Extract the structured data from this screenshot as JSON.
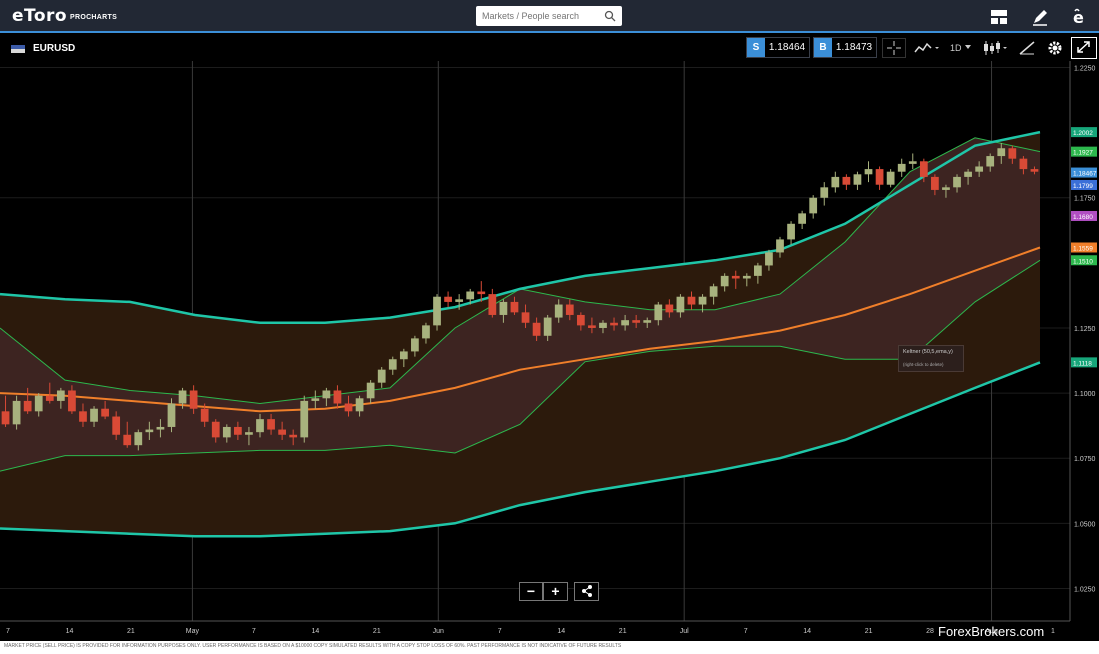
{
  "header": {
    "logo_text": "eToro",
    "logo_sub": "PROCHARTS",
    "search": {
      "placeholder": "Markets / People search"
    }
  },
  "toolbar": {
    "symbol": "EURUSD",
    "sell": {
      "label": "S",
      "price": "1.18464"
    },
    "buy": {
      "label": "B",
      "price": "1.18473"
    },
    "timeframe": "1D"
  },
  "tooltip": {
    "title": "Keltner (50,5,ema,y)",
    "hint": "(right-click to delete)"
  },
  "footer_text": "MARKET PRICE (SELL PRICE) IS PROVIDED FOR INFORMATION PURPOSES ONLY. USER PERFORMANCE IS BASED ON A $10000 COPY SIMULATED RESULTS WITH A COPY STOP LOSS OF 60%. PAST PERFORMANCE IS NOT INDICATIVE OF FUTURE RESULTS",
  "watermark": "ForexBrokers.com",
  "colors": {
    "accent": "#3b8fd8",
    "up": "#a8b27e",
    "down": "#d94a36",
    "keltner": "#1fc6a8",
    "ema": "#f07f2a"
  },
  "chart_data": {
    "type": "candlestick",
    "x_tick_labels": [
      "7",
      "14",
      "21",
      "May",
      "7",
      "14",
      "21",
      "Jun",
      "7",
      "14",
      "21",
      "Jul",
      "7",
      "14",
      "21",
      "28",
      "Aug",
      "1"
    ],
    "y_tick_labels": [
      "1.2250",
      "1.1750",
      "1.1250",
      "1.1000",
      "1.0750",
      "1.0500",
      "1.0250"
    ],
    "ylim": [
      1.0125,
      1.2275
    ],
    "price_labels": [
      {
        "value": "1.2002",
        "color": "#17a67a"
      },
      {
        "value": "1.1927",
        "color": "#2db84d"
      },
      {
        "value": "1.18467",
        "color": "#3b8fd8"
      },
      {
        "value": "1.1799",
        "color": "#3b6fd8"
      },
      {
        "value": "1.1680",
        "color": "#b14fc2"
      },
      {
        "value": "1.1559",
        "color": "#f07f2a"
      },
      {
        "value": "1.1510",
        "color": "#2db84d"
      },
      {
        "value": "1.1118",
        "color": "#17a67a"
      }
    ],
    "candles": [
      [
        1.093,
        1.099,
        1.087,
        1.088
      ],
      [
        1.088,
        1.099,
        1.086,
        1.097
      ],
      [
        1.097,
        1.102,
        1.092,
        1.093
      ],
      [
        1.093,
        1.1,
        1.091,
        1.099
      ],
      [
        1.099,
        1.104,
        1.096,
        1.097
      ],
      [
        1.097,
        1.102,
        1.094,
        1.101
      ],
      [
        1.101,
        1.103,
        1.092,
        1.093
      ],
      [
        1.093,
        1.096,
        1.087,
        1.089
      ],
      [
        1.089,
        1.095,
        1.087,
        1.094
      ],
      [
        1.094,
        1.097,
        1.09,
        1.091
      ],
      [
        1.091,
        1.093,
        1.082,
        1.084
      ],
      [
        1.084,
        1.089,
        1.079,
        1.08
      ],
      [
        1.08,
        1.086,
        1.078,
        1.085
      ],
      [
        1.085,
        1.089,
        1.082,
        1.086
      ],
      [
        1.086,
        1.09,
        1.083,
        1.087
      ],
      [
        1.087,
        1.098,
        1.085,
        1.096
      ],
      [
        1.096,
        1.102,
        1.094,
        1.101
      ],
      [
        1.101,
        1.103,
        1.092,
        1.094
      ],
      [
        1.094,
        1.096,
        1.087,
        1.089
      ],
      [
        1.089,
        1.09,
        1.081,
        1.083
      ],
      [
        1.083,
        1.088,
        1.081,
        1.087
      ],
      [
        1.087,
        1.089,
        1.082,
        1.084
      ],
      [
        1.084,
        1.087,
        1.08,
        1.085
      ],
      [
        1.085,
        1.092,
        1.083,
        1.09
      ],
      [
        1.09,
        1.092,
        1.084,
        1.086
      ],
      [
        1.086,
        1.089,
        1.082,
        1.084
      ],
      [
        1.084,
        1.086,
        1.08,
        1.083
      ],
      [
        1.083,
        1.099,
        1.081,
        1.097
      ],
      [
        1.097,
        1.101,
        1.094,
        1.098
      ],
      [
        1.098,
        1.102,
        1.095,
        1.101
      ],
      [
        1.101,
        1.103,
        1.094,
        1.096
      ],
      [
        1.096,
        1.099,
        1.091,
        1.093
      ],
      [
        1.093,
        1.099,
        1.091,
        1.098
      ],
      [
        1.098,
        1.105,
        1.096,
        1.104
      ],
      [
        1.104,
        1.11,
        1.102,
        1.109
      ],
      [
        1.109,
        1.114,
        1.107,
        1.113
      ],
      [
        1.113,
        1.117,
        1.11,
        1.116
      ],
      [
        1.116,
        1.122,
        1.114,
        1.121
      ],
      [
        1.121,
        1.127,
        1.119,
        1.126
      ],
      [
        1.126,
        1.138,
        1.124,
        1.137
      ],
      [
        1.137,
        1.139,
        1.133,
        1.135
      ],
      [
        1.135,
        1.138,
        1.132,
        1.136
      ],
      [
        1.136,
        1.14,
        1.134,
        1.139
      ],
      [
        1.139,
        1.143,
        1.135,
        1.138
      ],
      [
        1.138,
        1.14,
        1.129,
        1.13
      ],
      [
        1.13,
        1.136,
        1.127,
        1.135
      ],
      [
        1.135,
        1.137,
        1.13,
        1.131
      ],
      [
        1.131,
        1.134,
        1.125,
        1.127
      ],
      [
        1.127,
        1.129,
        1.12,
        1.122
      ],
      [
        1.122,
        1.13,
        1.12,
        1.129
      ],
      [
        1.129,
        1.136,
        1.127,
        1.134
      ],
      [
        1.134,
        1.136,
        1.128,
        1.13
      ],
      [
        1.13,
        1.131,
        1.124,
        1.126
      ],
      [
        1.126,
        1.129,
        1.123,
        1.125
      ],
      [
        1.125,
        1.128,
        1.123,
        1.127
      ],
      [
        1.127,
        1.129,
        1.124,
        1.126
      ],
      [
        1.126,
        1.13,
        1.124,
        1.128
      ],
      [
        1.128,
        1.13,
        1.125,
        1.127
      ],
      [
        1.127,
        1.129,
        1.125,
        1.128
      ],
      [
        1.128,
        1.135,
        1.126,
        1.134
      ],
      [
        1.134,
        1.136,
        1.129,
        1.131
      ],
      [
        1.131,
        1.138,
        1.129,
        1.137
      ],
      [
        1.137,
        1.139,
        1.132,
        1.134
      ],
      [
        1.134,
        1.138,
        1.131,
        1.137
      ],
      [
        1.137,
        1.142,
        1.134,
        1.141
      ],
      [
        1.141,
        1.146,
        1.139,
        1.145
      ],
      [
        1.145,
        1.147,
        1.14,
        1.144
      ],
      [
        1.144,
        1.146,
        1.141,
        1.145
      ],
      [
        1.145,
        1.15,
        1.142,
        1.149
      ],
      [
        1.149,
        1.155,
        1.147,
        1.154
      ],
      [
        1.154,
        1.16,
        1.152,
        1.159
      ],
      [
        1.159,
        1.166,
        1.157,
        1.165
      ],
      [
        1.165,
        1.17,
        1.163,
        1.169
      ],
      [
        1.169,
        1.176,
        1.167,
        1.175
      ],
      [
        1.175,
        1.181,
        1.172,
        1.179
      ],
      [
        1.179,
        1.185,
        1.177,
        1.183
      ],
      [
        1.183,
        1.184,
        1.178,
        1.18
      ],
      [
        1.18,
        1.185,
        1.178,
        1.184
      ],
      [
        1.184,
        1.189,
        1.181,
        1.186
      ],
      [
        1.186,
        1.187,
        1.178,
        1.18
      ],
      [
        1.18,
        1.186,
        1.179,
        1.185
      ],
      [
        1.185,
        1.19,
        1.183,
        1.188
      ],
      [
        1.188,
        1.192,
        1.186,
        1.189
      ],
      [
        1.189,
        1.19,
        1.181,
        1.183
      ],
      [
        1.183,
        1.184,
        1.176,
        1.178
      ],
      [
        1.178,
        1.18,
        1.175,
        1.179
      ],
      [
        1.179,
        1.184,
        1.177,
        1.183
      ],
      [
        1.183,
        1.186,
        1.18,
        1.185
      ],
      [
        1.185,
        1.189,
        1.183,
        1.187
      ],
      [
        1.187,
        1.192,
        1.185,
        1.191
      ],
      [
        1.191,
        1.196,
        1.188,
        1.194
      ],
      [
        1.194,
        1.195,
        1.188,
        1.19
      ],
      [
        1.19,
        1.191,
        1.184,
        1.186
      ],
      [
        1.186,
        1.187,
        1.184,
        1.185
      ]
    ],
    "series": [
      {
        "kind": "keltner-upper",
        "values": [
          1.138,
          1.136,
          1.135,
          1.13,
          1.127,
          1.127,
          1.129,
          1.133,
          1.14,
          1.145,
          1.148,
          1.151,
          1.155,
          1.165,
          1.18,
          1.195,
          1.2002
        ]
      },
      {
        "kind": "keltner-lower",
        "values": [
          1.048,
          1.047,
          1.046,
          1.045,
          1.045,
          1.046,
          1.047,
          1.05,
          1.057,
          1.062,
          1.066,
          1.07,
          1.075,
          1.082,
          1.092,
          1.102,
          1.1118
        ]
      },
      {
        "kind": "ema-50",
        "values": [
          1.1,
          1.099,
          1.097,
          1.095,
          1.093,
          1.094,
          1.097,
          1.102,
          1.109,
          1.113,
          1.117,
          1.12,
          1.124,
          1.13,
          1.138,
          1.147,
          1.1559
        ]
      },
      {
        "kind": "bollinger-upper",
        "values": [
          1.125,
          1.105,
          1.101,
          1.099,
          1.096,
          1.099,
          1.102,
          1.125,
          1.14,
          1.135,
          1.132,
          1.132,
          1.138,
          1.158,
          1.185,
          1.198,
          1.1927
        ]
      },
      {
        "kind": "bollinger-lower",
        "values": [
          1.07,
          1.076,
          1.076,
          1.077,
          1.078,
          1.078,
          1.08,
          1.077,
          1.088,
          1.112,
          1.116,
          1.118,
          1.118,
          1.113,
          1.113,
          1.135,
          1.151
        ]
      }
    ]
  }
}
